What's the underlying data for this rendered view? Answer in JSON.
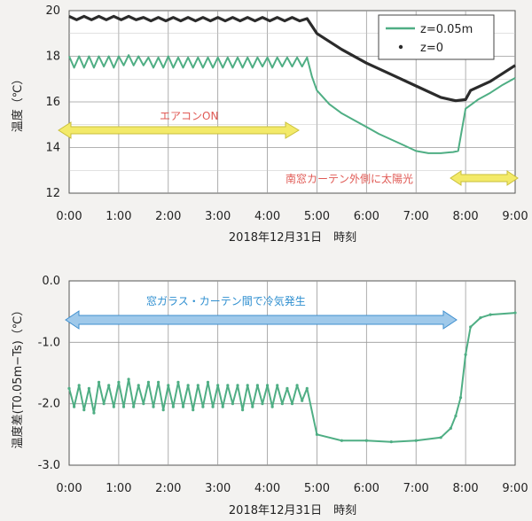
{
  "chart_data": [
    {
      "type": "line",
      "ylabel": "温度（℃）",
      "xlabel": "2018年12月31日　時刻",
      "xlim": [
        0,
        9
      ],
      "ylim": [
        12,
        20
      ],
      "xticks": [
        "0:00",
        "1:00",
        "2:00",
        "3:00",
        "4:00",
        "5:00",
        "6:00",
        "7:00",
        "8:00",
        "9:00"
      ],
      "yticks": [
        "12",
        "14",
        "16",
        "18",
        "20"
      ],
      "grid": true,
      "legend": {
        "position": "top-right",
        "entries": [
          {
            "label": "z=0.05m",
            "series": 0
          },
          {
            "label": "z=0",
            "series": 1
          }
        ]
      },
      "series": [
        {
          "name": "z=0.05m",
          "color": "#4fae84",
          "x": [
            0,
            0.1,
            0.2,
            0.3,
            0.4,
            0.5,
            0.6,
            0.7,
            0.8,
            0.9,
            1.0,
            1.1,
            1.2,
            1.3,
            1.4,
            1.5,
            1.6,
            1.7,
            1.8,
            1.9,
            2.0,
            2.1,
            2.2,
            2.3,
            2.4,
            2.5,
            2.6,
            2.7,
            2.8,
            2.9,
            3.0,
            3.1,
            3.2,
            3.3,
            3.4,
            3.5,
            3.6,
            3.7,
            3.8,
            3.9,
            4.0,
            4.1,
            4.2,
            4.3,
            4.4,
            4.5,
            4.6,
            4.7,
            4.8,
            4.9,
            5.0,
            5.25,
            5.5,
            5.75,
            6.0,
            6.25,
            6.5,
            6.75,
            7.0,
            7.25,
            7.5,
            7.75,
            7.85,
            8.0,
            8.25,
            8.5,
            8.75,
            9.0
          ],
          "y": [
            18.0,
            17.5,
            18.0,
            17.5,
            18.0,
            17.5,
            18.0,
            17.55,
            18.0,
            17.5,
            18.0,
            17.6,
            18.05,
            17.6,
            18.0,
            17.6,
            17.95,
            17.5,
            17.95,
            17.5,
            18.0,
            17.5,
            17.95,
            17.5,
            17.95,
            17.5,
            17.95,
            17.5,
            17.95,
            17.5,
            17.95,
            17.5,
            17.95,
            17.5,
            17.95,
            17.5,
            17.95,
            17.5,
            17.95,
            17.55,
            17.95,
            17.5,
            17.95,
            17.55,
            17.95,
            17.55,
            17.95,
            17.55,
            17.95,
            17.1,
            16.5,
            15.9,
            15.5,
            15.2,
            14.9,
            14.6,
            14.35,
            14.1,
            13.85,
            13.75,
            13.75,
            13.8,
            13.85,
            15.7,
            16.1,
            16.4,
            16.75,
            17.05
          ]
        },
        {
          "name": "z=0",
          "color": "#2b2b2b",
          "x": [
            0,
            0.15,
            0.3,
            0.45,
            0.6,
            0.75,
            0.9,
            1.05,
            1.2,
            1.35,
            1.5,
            1.65,
            1.8,
            1.95,
            2.1,
            2.25,
            2.4,
            2.55,
            2.7,
            2.85,
            3.0,
            3.15,
            3.3,
            3.45,
            3.6,
            3.75,
            3.9,
            4.05,
            4.2,
            4.35,
            4.5,
            4.65,
            4.8,
            5.0,
            5.5,
            6.0,
            6.5,
            7.0,
            7.5,
            7.8,
            8.0,
            8.1,
            8.5,
            9.0
          ],
          "y": [
            19.75,
            19.6,
            19.75,
            19.6,
            19.75,
            19.6,
            19.75,
            19.6,
            19.75,
            19.6,
            19.7,
            19.55,
            19.7,
            19.55,
            19.7,
            19.55,
            19.7,
            19.55,
            19.7,
            19.55,
            19.7,
            19.55,
            19.7,
            19.55,
            19.7,
            19.55,
            19.7,
            19.55,
            19.7,
            19.55,
            19.7,
            19.55,
            19.65,
            19.0,
            18.3,
            17.7,
            17.2,
            16.7,
            16.2,
            16.05,
            16.1,
            16.5,
            16.9,
            17.6
          ]
        }
      ],
      "annotations": [
        {
          "text": "エアコンON",
          "color": "#e05a55"
        },
        {
          "text": "南窓カーテン外側に太陽光",
          "color": "#e05a55"
        }
      ]
    },
    {
      "type": "line",
      "ylabel": "温度差(T0.05m−Ts)（℃）",
      "xlabel": "2018年12月31日　時刻",
      "xlim": [
        0,
        9
      ],
      "ylim": [
        -3.0,
        0.0
      ],
      "xticks": [
        "0:00",
        "1:00",
        "2:00",
        "3:00",
        "4:00",
        "5:00",
        "6:00",
        "7:00",
        "8:00",
        "9:00"
      ],
      "yticks": [
        "0.0",
        "-1.0",
        "-2.0",
        "-3.0"
      ],
      "grid": true,
      "series": [
        {
          "color": "#4fae84",
          "x": [
            0,
            0.1,
            0.2,
            0.3,
            0.4,
            0.5,
            0.6,
            0.7,
            0.8,
            0.9,
            1.0,
            1.1,
            1.2,
            1.3,
            1.4,
            1.5,
            1.6,
            1.7,
            1.8,
            1.9,
            2.0,
            2.1,
            2.2,
            2.3,
            2.4,
            2.5,
            2.6,
            2.7,
            2.8,
            2.9,
            3.0,
            3.1,
            3.2,
            3.3,
            3.4,
            3.5,
            3.6,
            3.7,
            3.8,
            3.9,
            4.0,
            4.1,
            4.2,
            4.3,
            4.4,
            4.5,
            4.6,
            4.7,
            4.8,
            5.0,
            5.5,
            6.0,
            6.5,
            7.0,
            7.5,
            7.7,
            7.8,
            7.9,
            8.0,
            8.1,
            8.3,
            8.5,
            9.0
          ],
          "y": [
            -1.75,
            -2.05,
            -1.7,
            -2.1,
            -1.75,
            -2.15,
            -1.65,
            -2.0,
            -1.7,
            -2.05,
            -1.65,
            -2.05,
            -1.6,
            -2.05,
            -1.7,
            -2.0,
            -1.65,
            -2.05,
            -1.65,
            -2.1,
            -1.7,
            -2.05,
            -1.65,
            -2.05,
            -1.7,
            -2.1,
            -1.7,
            -2.05,
            -1.65,
            -2.05,
            -1.7,
            -2.05,
            -1.7,
            -2.0,
            -1.7,
            -2.1,
            -1.7,
            -2.05,
            -1.7,
            -2.0,
            -1.7,
            -2.05,
            -1.7,
            -2.0,
            -1.75,
            -2.0,
            -1.7,
            -1.95,
            -1.75,
            -2.5,
            -2.6,
            -2.6,
            -2.62,
            -2.6,
            -2.55,
            -2.4,
            -2.2,
            -1.9,
            -1.2,
            -0.75,
            -0.6,
            -0.55,
            -0.52
          ]
        }
      ],
      "annotations": [
        {
          "text": "窓ガラス・カーテン間で冷気発生",
          "color": "#2f8fd0"
        }
      ]
    }
  ]
}
